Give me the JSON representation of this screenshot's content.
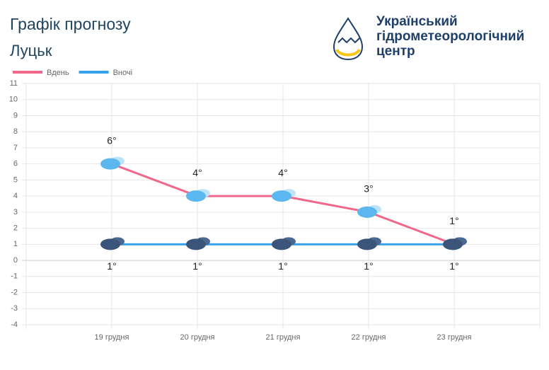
{
  "header": {
    "title": "Графік прогнозу",
    "subtitle": "Луцьк",
    "org_name": [
      "Український",
      "гідрометеорологічний",
      "центр"
    ]
  },
  "chart_data": {
    "type": "line",
    "categories": [
      "19 грудня",
      "20 грудня",
      "21 грудня",
      "22 грудня",
      "23 грудня"
    ],
    "series": [
      {
        "name": "Вдень",
        "color": "#f0678a",
        "values": [
          6,
          4,
          4,
          3,
          1
        ],
        "value_labels": [
          "6°",
          "4°",
          "4°",
          "3°",
          "1°"
        ]
      },
      {
        "name": "Вночі",
        "color": "#36a2eb",
        "values": [
          1,
          1,
          1,
          1,
          1
        ],
        "value_labels": [
          "1°",
          "1°",
          "1°",
          "1°",
          "1°"
        ]
      }
    ],
    "ylim": [
      -4,
      11
    ],
    "yticks": [
      -4,
      -3,
      -2,
      -1,
      0,
      1,
      2,
      3,
      4,
      5,
      6,
      7,
      8,
      9,
      10,
      11
    ],
    "grid": true
  }
}
